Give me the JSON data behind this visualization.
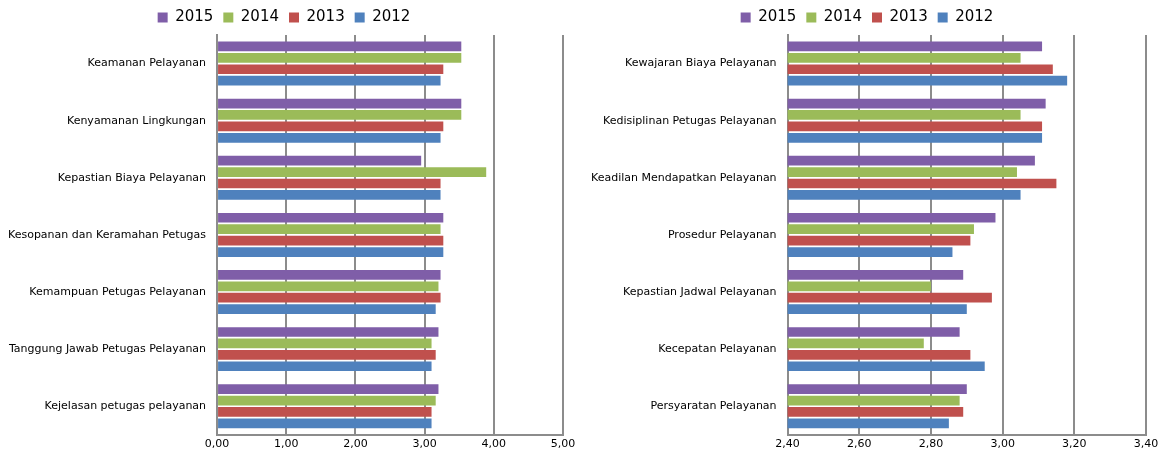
{
  "chart_data": [
    {
      "type": "bar",
      "orientation": "horizontal",
      "categories": [
        "Keamanan Pelayanan",
        "Kenyamanan Lingkungan",
        "Kepastian Biaya Pelayanan",
        "Kesopanan dan Keramahan Petugas",
        "Kemampuan Petugas Pelayanan",
        "Tanggung Jawab Petugas Pelayanan",
        "Kejelasan petugas pelayanan"
      ],
      "series": [
        {
          "name": "2015",
          "color": "#7f5ea8",
          "values": [
            3.53,
            3.53,
            2.95,
            3.27,
            3.23,
            3.2,
            3.2
          ]
        },
        {
          "name": "2014",
          "color": "#9bbb59",
          "values": [
            3.53,
            3.53,
            3.89,
            3.23,
            3.2,
            3.1,
            3.16
          ]
        },
        {
          "name": "2013",
          "color": "#c0504d",
          "values": [
            3.27,
            3.27,
            3.23,
            3.27,
            3.23,
            3.16,
            3.1
          ]
        },
        {
          "name": "2012",
          "color": "#4f81bd",
          "values": [
            3.23,
            3.23,
            3.23,
            3.27,
            3.16,
            3.1,
            3.1
          ]
        }
      ],
      "xlim": [
        0,
        5
      ],
      "xticks": [
        {
          "value": 0,
          "label": "0,00"
        },
        {
          "value": 1,
          "label": "1,00"
        },
        {
          "value": 2,
          "label": "2,00"
        },
        {
          "value": 3,
          "label": "3,00"
        },
        {
          "value": 4,
          "label": "4,00"
        },
        {
          "value": 5,
          "label": "5,00"
        }
      ],
      "grid": "x",
      "legend": "top"
    },
    {
      "type": "bar",
      "orientation": "horizontal",
      "categories": [
        "Kewajaran Biaya Pelayanan",
        "Kedisiplinan Petugas Pelayanan",
        "Keadilan Mendapatkan Pelayanan",
        "Prosedur Pelayanan",
        "Kepastian Jadwal Pelayanan",
        "Kecepatan Pelayanan",
        "Persyaratan Pelayanan"
      ],
      "series": [
        {
          "name": "2015",
          "color": "#7f5ea8",
          "values": [
            3.11,
            3.12,
            3.09,
            2.98,
            2.89,
            2.88,
            2.9
          ]
        },
        {
          "name": "2014",
          "color": "#9bbb59",
          "values": [
            3.05,
            3.05,
            3.04,
            2.92,
            2.8,
            2.78,
            2.88
          ]
        },
        {
          "name": "2013",
          "color": "#c0504d",
          "values": [
            3.14,
            3.11,
            3.15,
            2.91,
            2.97,
            2.91,
            2.89
          ]
        },
        {
          "name": "2012",
          "color": "#4f81bd",
          "values": [
            3.18,
            3.11,
            3.05,
            2.86,
            2.9,
            2.95,
            2.85
          ]
        }
      ],
      "xlim": [
        2.4,
        3.4
      ],
      "xticks": [
        {
          "value": 2.4,
          "label": "2,40"
        },
        {
          "value": 2.6,
          "label": "2,60"
        },
        {
          "value": 2.8,
          "label": "2,80"
        },
        {
          "value": 3.0,
          "label": "3,00"
        },
        {
          "value": 3.2,
          "label": "3,20"
        },
        {
          "value": 3.4,
          "label": "3,40"
        }
      ],
      "grid": "x",
      "legend": "top"
    }
  ]
}
